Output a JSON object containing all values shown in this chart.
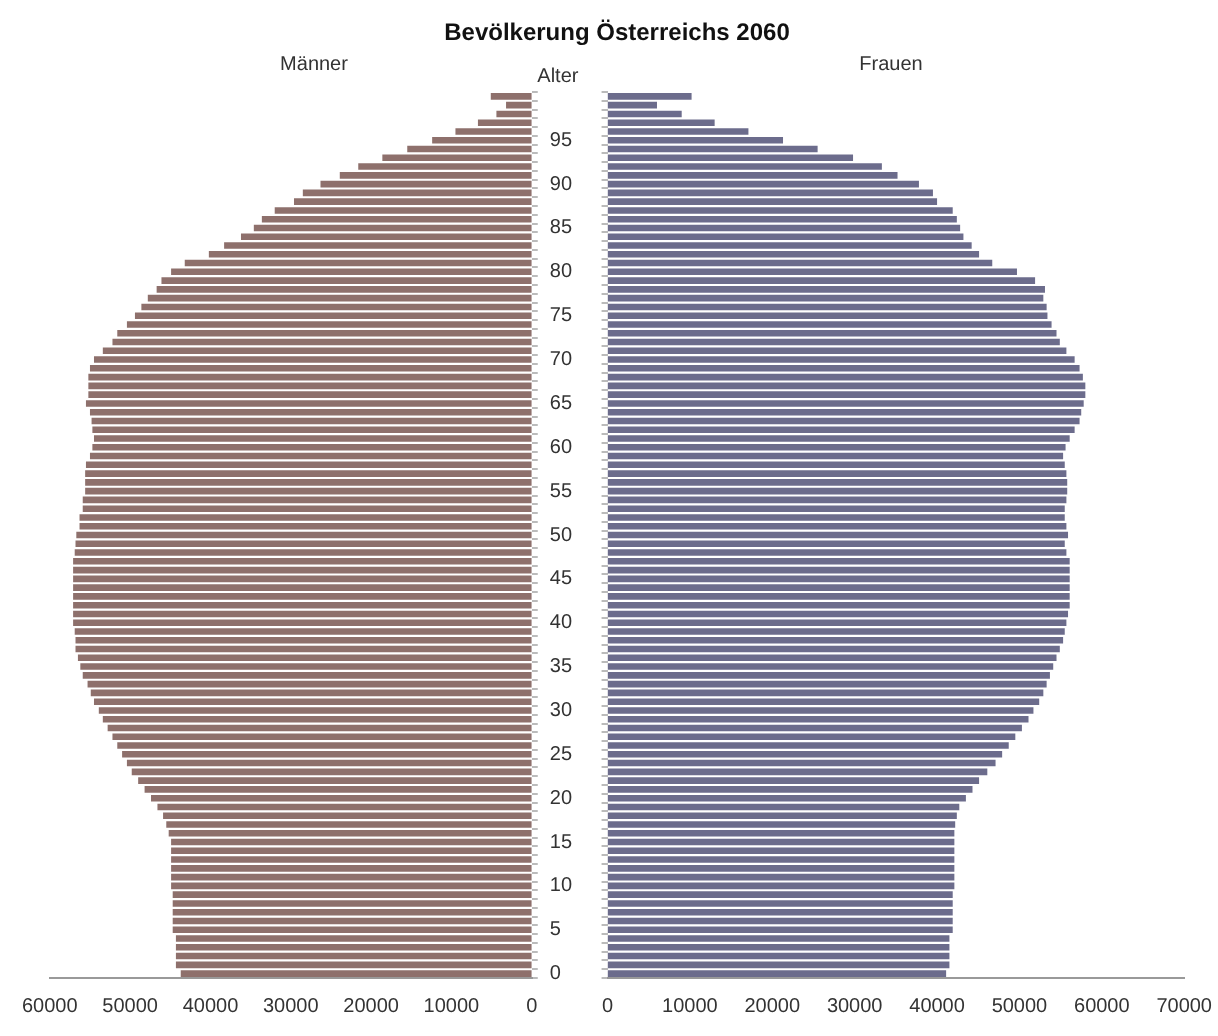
{
  "chart_data": [
    {
      "type": "bar",
      "title": "Bevölkerung Österreichs 2060",
      "subtitle": "Männer",
      "ylabel": "Alter",
      "orientation": "horizontal",
      "color": "#8e706c",
      "categories": [
        null,
        null,
        null,
        null,
        null,
        "95",
        null,
        null,
        null,
        null,
        "90",
        null,
        null,
        null,
        null,
        "85",
        null,
        null,
        null,
        null,
        "80",
        null,
        null,
        null,
        null,
        "75",
        null,
        null,
        null,
        null,
        "70",
        null,
        null,
        null,
        null,
        "65",
        null,
        null,
        null,
        null,
        "60",
        null,
        null,
        null,
        null,
        "55",
        null,
        null,
        null,
        null,
        "50",
        null,
        null,
        null,
        null,
        "45",
        null,
        null,
        null,
        null,
        "40",
        null,
        null,
        null,
        null,
        "35",
        null,
        null,
        null,
        null,
        "30",
        null,
        null,
        null,
        null,
        "25",
        null,
        null,
        null,
        null,
        "20",
        null,
        null,
        null,
        null,
        "15",
        null,
        null,
        null,
        null,
        "10",
        null,
        null,
        null,
        null,
        "5",
        null,
        null,
        null,
        null,
        "0"
      ],
      "values": [
        5100,
        3200,
        4400,
        6700,
        9500,
        12400,
        15500,
        18600,
        21600,
        23900,
        26300,
        28500,
        29600,
        32000,
        33600,
        34600,
        36200,
        38300,
        40200,
        43200,
        44900,
        46100,
        46700,
        47800,
        48600,
        49400,
        50400,
        51600,
        52200,
        53400,
        54500,
        55000,
        55200,
        55200,
        55200,
        55500,
        55000,
        54800,
        54700,
        54500,
        54700,
        55000,
        55500,
        55600,
        55600,
        55600,
        55900,
        55900,
        56300,
        56300,
        56700,
        56800,
        56900,
        57100,
        57100,
        57100,
        57100,
        57100,
        57100,
        57100,
        57100,
        56900,
        56800,
        56800,
        56500,
        56200,
        55900,
        55300,
        54900,
        54500,
        53900,
        53400,
        52800,
        52200,
        51600,
        51000,
        50400,
        49800,
        49000,
        48200,
        47400,
        46600,
        45900,
        45500,
        45200,
        44900,
        44900,
        44900,
        44900,
        44900,
        44900,
        44700,
        44700,
        44700,
        44700,
        44700,
        44300,
        44300,
        44300,
        44300,
        43700
      ],
      "xlim": [
        60000,
        0
      ],
      "xticks": [
        60000,
        50000,
        40000,
        30000,
        20000,
        10000,
        0
      ]
    },
    {
      "type": "bar",
      "title": "Frauen",
      "orientation": "horizontal",
      "color": "#6c6c8c",
      "tick_labels": "x",
      "categories": [
        null,
        null,
        null,
        null,
        null,
        "95",
        null,
        null,
        null,
        null,
        "90",
        null,
        null,
        null,
        null,
        "85",
        null,
        null,
        null,
        null,
        "80",
        null,
        null,
        null,
        null,
        "75",
        null,
        null,
        null,
        null,
        "70",
        null,
        null,
        null,
        null,
        "65",
        null,
        null,
        null,
        null,
        "60",
        null,
        null,
        null,
        null,
        "55",
        null,
        null,
        null,
        null,
        "50",
        null,
        null,
        null,
        null,
        "45",
        null,
        null,
        null,
        null,
        "40",
        null,
        null,
        null,
        null,
        "35",
        null,
        null,
        null,
        null,
        "30",
        null,
        null,
        null,
        null,
        "25",
        null,
        null,
        null,
        null,
        "20",
        null,
        null,
        null,
        null,
        "15",
        null,
        null,
        null,
        null,
        "10",
        null,
        null,
        null,
        null,
        "5",
        null,
        null,
        null,
        null,
        "0"
      ],
      "values": [
        10200,
        6000,
        9000,
        13000,
        17100,
        21300,
        25500,
        29800,
        33300,
        35200,
        37800,
        39500,
        40000,
        41900,
        42400,
        42800,
        43200,
        44200,
        45100,
        46700,
        49700,
        51900,
        53100,
        52900,
        53300,
        53400,
        53900,
        54500,
        54900,
        55700,
        56700,
        57300,
        57700,
        58000,
        58000,
        57800,
        57500,
        57300,
        56700,
        56100,
        55600,
        55300,
        55500,
        55700,
        55800,
        55800,
        55700,
        55500,
        55500,
        55700,
        55900,
        55500,
        55700,
        56100,
        56100,
        56100,
        56100,
        56100,
        56100,
        55900,
        55700,
        55500,
        55300,
        54900,
        54500,
        54100,
        53700,
        53300,
        52900,
        52400,
        51700,
        51100,
        50300,
        49500,
        48700,
        47900,
        47100,
        46100,
        45100,
        44300,
        43500,
        42700,
        42400,
        42200,
        42100,
        42100,
        42100,
        42100,
        42100,
        42100,
        42100,
        41900,
        41900,
        41900,
        41900,
        41900,
        41500,
        41500,
        41500,
        41500,
        41100
      ],
      "xlim": [
        0,
        70000
      ],
      "xticks": [
        0,
        10000,
        20000,
        30000,
        40000,
        50000,
        60000,
        70000
      ]
    }
  ]
}
